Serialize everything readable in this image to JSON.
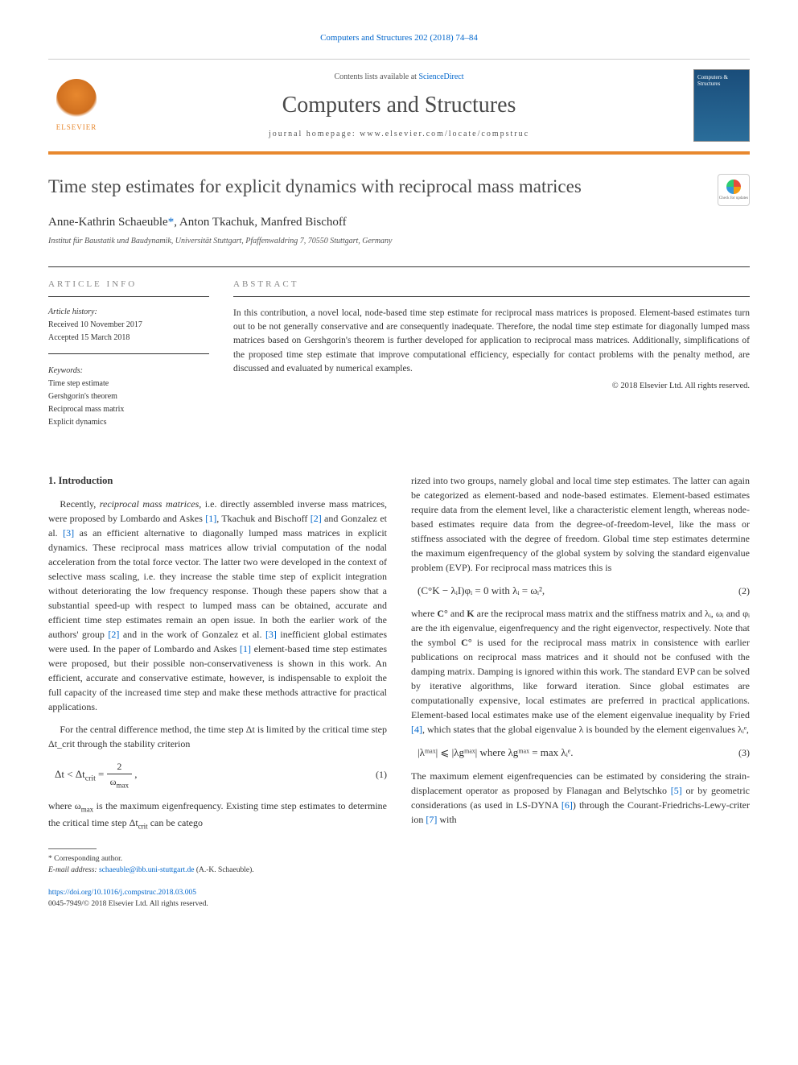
{
  "journal_ref": "Computers and Structures 202 (2018) 74–84",
  "header": {
    "contents_prefix": "Contents lists available at ",
    "contents_link": "ScienceDirect",
    "journal_name": "Computers and Structures",
    "homepage_prefix": "journal homepage: ",
    "homepage_url": "www.elsevier.com/locate/compstruc",
    "elsevier_label": "ELSEVIER",
    "cover_title": "Computers & Structures"
  },
  "article": {
    "title": "Time step estimates for explicit dynamics with reciprocal mass matrices",
    "authors_html": "Anne-Kathrin Schaeuble *, Anton Tkachuk, Manfred Bischoff",
    "author1": "Anne-Kathrin Schaeuble",
    "author_corr_mark": "*",
    "author2": ", Anton Tkachuk, Manfred Bischoff",
    "affiliation": "Institut für Baustatik und Baudynamik, Universität Stuttgart, Pfaffenwaldring 7, 70550 Stuttgart, Germany",
    "crossmark_label": "Check for updates"
  },
  "info": {
    "heading": "ARTICLE INFO",
    "history_label": "Article history:",
    "received": "Received 10 November 2017",
    "accepted": "Accepted 15 March 2018",
    "keywords_label": "Keywords:",
    "keywords": [
      "Time step estimate",
      "Gershgorin's theorem",
      "Reciprocal mass matrix",
      "Explicit dynamics"
    ]
  },
  "abstract": {
    "heading": "ABSTRACT",
    "text": "In this contribution, a novel local, node-based time step estimate for reciprocal mass matrices is proposed. Element-based estimates turn out to be not generally conservative and are consequently inadequate. Therefore, the nodal time step estimate for diagonally lumped mass matrices based on Gershgorin's theorem is further developed for application to reciprocal mass matrices. Additionally, simplifications of the proposed time step estimate that improve computational efficiency, especially for contact problems with the penalty method, are discussed and evaluated by numerical examples.",
    "copyright": "© 2018 Elsevier Ltd. All rights reserved."
  },
  "section1": {
    "heading": "1. Introduction",
    "p1a": "Recently, ",
    "p1_em": "reciprocal mass matrices",
    "p1b": ", i.e. directly assembled inverse mass matrices, were proposed by Lombardo and Askes ",
    "r1": "[1]",
    "p1c": ", Tkachuk and Bischoff ",
    "r2": "[2]",
    "p1d": " and Gonzalez et al. ",
    "r3": "[3]",
    "p1e": " as an efficient alternative to diagonally lumped mass matrices in explicit dynamics. These reciprocal mass matrices allow trivial computation of the nodal acceleration from the total force vector. The latter two were developed in the context of selective mass scaling, i.e. they increase the stable time step of explicit integration without deteriorating the low frequency response. Though these papers show that a substantial speed-up with respect to lumped mass can be obtained, accurate and efficient time step estimates remain an open issue. In both the earlier work of the authors' group ",
    "r2b": "[2]",
    "p1f": " and in the work of Gonzalez et al. ",
    "r3b": "[3]",
    "p1g": " inefficient global estimates were used. In the paper of Lombardo and Askes ",
    "r1b": "[1]",
    "p1h": " element-based time step estimates were proposed, but their possible non-conservativeness is shown in this work. An efficient, accurate and conservative estimate, however, is indispensable to exploit the full capacity of the increased time step and make these methods attractive for practical applications.",
    "p2": "For the central difference method, the time step Δt is limited by the critical time step Δt_crit through the stability criterion",
    "eq1_lhs": "Δt < Δt",
    "eq1_sub": "crit",
    "eq1_mid": " = ",
    "eq1_num": "2",
    "eq1_den": "ω",
    "eq1_den_sub": "max",
    "eq1_tail": " ,",
    "eq1_num_label": "(1)",
    "p3a": "where ω",
    "p3_sub": "max",
    "p3b": " is the maximum eigenfrequency. Existing time step estimates to determine the critical time step Δt",
    "p3_sub2": "crit",
    "p3c": " can be catego"
  },
  "col2": {
    "p1a": "rized into two groups, namely global and local time step estimates. The latter can again be categorized as element-based and node-based estimates. Element-based estimates require data from the element level, like a characteristic element length, whereas node-based estimates require data from the degree-of-freedom-level, like the mass or stiffness associated with the degree of freedom. Global time step estimates determine the maximum eigenfrequency of the global system by solving the standard eigenvalue problem (EVP). For reciprocal mass matrices this is",
    "eq2": "(C°K − λᵢI)φᵢ = 0   with   λᵢ = ωᵢ²,",
    "eq2_num": "(2)",
    "p2a": "where ",
    "p2b": "C°",
    "p2c": " and ",
    "p2d": "K",
    "p2e": " are the reciprocal mass matrix and the stiffness matrix and λᵢ, ωᵢ and φᵢ are the ith eigenvalue, eigenfrequency and the right eigenvector, respectively. Note that the symbol ",
    "p2f": "C°",
    "p2g": " is used for the reciprocal mass matrix in consistence with earlier publications on reciprocal mass matrices and it should not be confused with the damping matrix. Damping is ignored within this work. The standard EVP can be solved by iterative algorithms, like forward iteration. Since global estimates are computationally expensive, local estimates are preferred in practical applications. Element-based local estimates make use of the element eigenvalue inequality by Fried ",
    "r4": "[4]",
    "p2h": ", which states that the global eigenvalue λ is bounded by the element eigenvalues λᵢᵉ,",
    "eq3": "|λᵐᵃˣ| ⩽ |λgᵐᵃˣ|   where   λgᵐᵃˣ = max λᵢᵉ.",
    "eq3_sub": "i,e",
    "eq3_num": "(3)",
    "p3a": "The maximum element eigenfrequencies can be estimated by considering the strain-displacement operator as proposed by Flanagan and Belytschko ",
    "r5": "[5]",
    "p3b": " or by geometric considerations (as used in LS-DYNA ",
    "r6": "[6]",
    "p3c": ") through the Courant-Friedrichs-Lewy-criter ion ",
    "r7": "[7]",
    "p3d": " with"
  },
  "footnote": {
    "corr_label": "* Corresponding author.",
    "email_label": "E-mail address: ",
    "email": "schaeuble@ibb.uni-stuttgart.de",
    "email_suffix": " (A.-K. Schaeuble)."
  },
  "footer": {
    "doi": "https://doi.org/10.1016/j.compstruc.2018.03.005",
    "issn_line": "0045-7949/© 2018 Elsevier Ltd. All rights reserved."
  },
  "colors": {
    "link": "#0066cc",
    "accent": "#e8882e",
    "text": "#333333",
    "muted": "#888888"
  }
}
